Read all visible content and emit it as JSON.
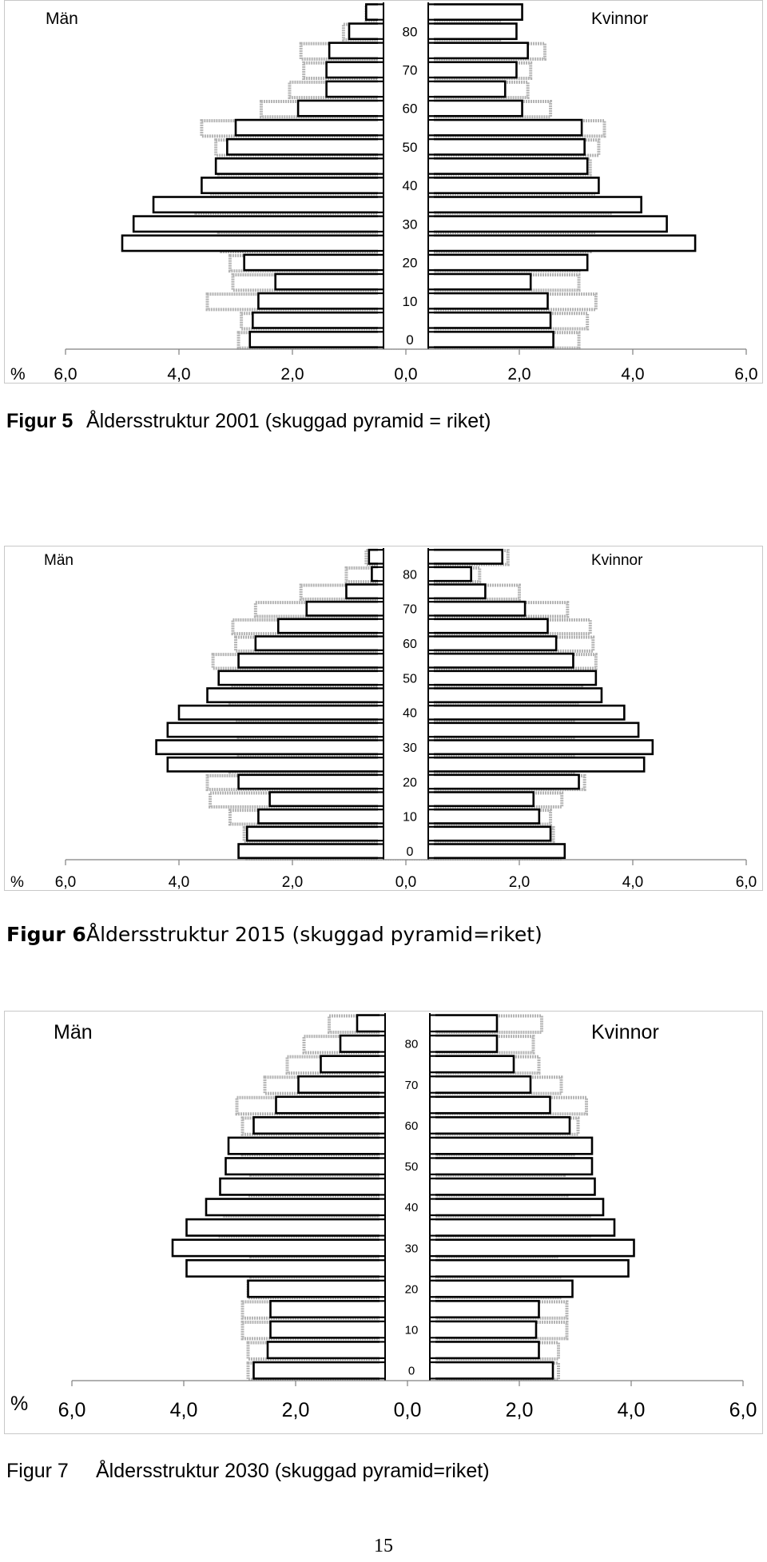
{
  "figures": [
    {
      "caption_num": "Figur 5",
      "caption_text": "Åldersstruktur 2001 (skuggad pyramid = riket)"
    },
    {
      "caption_num": "Figur 6",
      "caption_text": "Åldersstruktur 2015 (skuggad pyramid=riket)"
    },
    {
      "caption_num": "Figur 7",
      "caption_text": "Åldersstruktur 2030 (skuggad pyramid=riket)"
    }
  ],
  "page_number": "15",
  "chart_data": [
    {
      "type": "bar",
      "orientation": "horizontal-pyramid",
      "left_label": "Män",
      "right_label": "Kvinnor",
      "unit_label": "%",
      "x_ticks": [
        "6,0",
        "4,0",
        "2,0",
        "0,0",
        "2,0",
        "4,0",
        "6,0"
      ],
      "xlim": [
        -6,
        6
      ],
      "age_groups": [
        "0-4",
        "5-9",
        "10-14",
        "15-19",
        "20-24",
        "25-29",
        "30-34",
        "35-39",
        "40-44",
        "45-49",
        "50-54",
        "55-59",
        "60-64",
        "65-69",
        "70-74",
        "75-79",
        "80-84",
        "85+"
      ],
      "age_tick_labels": [
        "0",
        "10",
        "20",
        "30",
        "40",
        "50",
        "60",
        "70",
        "80"
      ],
      "series": [
        {
          "name": "Män",
          "values": [
            2.75,
            2.7,
            2.6,
            2.3,
            2.85,
            5.0,
            4.8,
            4.45,
            3.6,
            3.35,
            3.15,
            3.0,
            1.9,
            1.4,
            1.4,
            1.35,
            1.0,
            0.7
          ]
        },
        {
          "name": "Kvinnor",
          "values": [
            2.6,
            2.55,
            2.5,
            2.2,
            3.2,
            5.1,
            4.6,
            4.15,
            3.4,
            3.2,
            3.15,
            3.1,
            2.05,
            1.75,
            1.95,
            2.15,
            1.95,
            2.05
          ]
        },
        {
          "name": "riket män",
          "values": [
            2.95,
            2.9,
            3.5,
            3.05,
            3.1,
            3.25,
            3.3,
            3.7,
            3.45,
            3.3,
            3.35,
            3.6,
            2.55,
            2.05,
            1.8,
            1.85,
            1.1,
            0.7
          ]
        },
        {
          "name": "riket kvinnor",
          "values": [
            3.05,
            3.2,
            3.35,
            3.05,
            3.05,
            3.25,
            3.35,
            3.6,
            3.35,
            3.25,
            3.4,
            3.5,
            2.55,
            2.15,
            2.2,
            2.45,
            1.65,
            1.65
          ]
        }
      ]
    },
    {
      "type": "bar",
      "orientation": "horizontal-pyramid",
      "left_label": "Män",
      "right_label": "Kvinnor",
      "unit_label": "%",
      "x_ticks": [
        "6,0",
        "4,0",
        "2,0",
        "0,0",
        "2,0",
        "4,0",
        "6,0"
      ],
      "xlim": [
        -6,
        6
      ],
      "age_groups": [
        "0-4",
        "5-9",
        "10-14",
        "15-19",
        "20-24",
        "25-29",
        "30-34",
        "35-39",
        "40-44",
        "45-49",
        "50-54",
        "55-59",
        "60-64",
        "65-69",
        "70-74",
        "75-79",
        "80-84",
        "85+"
      ],
      "age_tick_labels": [
        "0",
        "10",
        "20",
        "30",
        "40",
        "50",
        "60",
        "70",
        "80"
      ],
      "series": [
        {
          "name": "Män",
          "values": [
            2.95,
            2.8,
            2.6,
            2.4,
            2.95,
            4.2,
            4.4,
            4.2,
            4.0,
            3.5,
            3.3,
            2.95,
            2.65,
            2.25,
            1.75,
            1.05,
            0.6,
            0.65
          ]
        },
        {
          "name": "Kvinnor",
          "values": [
            2.8,
            2.55,
            2.35,
            2.25,
            3.05,
            4.2,
            4.35,
            4.1,
            3.85,
            3.45,
            3.35,
            2.95,
            2.65,
            2.5,
            2.1,
            1.4,
            1.15,
            1.7
          ]
        },
        {
          "name": "riket män",
          "values": [
            2.8,
            2.85,
            3.1,
            3.45,
            3.5,
            3.1,
            2.95,
            2.95,
            3.0,
            3.1,
            3.05,
            3.4,
            3.0,
            3.05,
            2.65,
            1.85,
            1.05,
            0.7
          ]
        },
        {
          "name": "riket kvinnor",
          "values": [
            2.75,
            2.6,
            2.55,
            2.75,
            3.15,
            2.95,
            2.95,
            2.95,
            2.95,
            3.05,
            3.1,
            3.35,
            3.3,
            3.25,
            2.85,
            2.0,
            1.3,
            1.8
          ]
        }
      ]
    },
    {
      "type": "bar",
      "orientation": "horizontal-pyramid",
      "left_label": "Män",
      "right_label": "Kvinnor",
      "unit_label": "%",
      "x_ticks": [
        "6,0",
        "4,0",
        "2,0",
        "0,0",
        "2,0",
        "4,0",
        "6,0"
      ],
      "xlim": [
        -6,
        6
      ],
      "age_groups": [
        "0-4",
        "5-9",
        "10-14",
        "15-19",
        "20-24",
        "25-29",
        "30-34",
        "35-39",
        "40-44",
        "45-49",
        "50-54",
        "55-59",
        "60-64",
        "65-69",
        "70-74",
        "75-79",
        "80-84",
        "85+"
      ],
      "age_tick_labels": [
        "0",
        "10",
        "20",
        "30",
        "40",
        "50",
        "60",
        "70",
        "80"
      ],
      "series": [
        {
          "name": "Män",
          "values": [
            2.75,
            2.5,
            2.45,
            2.45,
            2.85,
            3.95,
            4.2,
            3.95,
            3.6,
            3.35,
            3.25,
            3.2,
            2.75,
            2.35,
            1.95,
            1.55,
            1.2,
            0.9
          ]
        },
        {
          "name": "Kvinnor",
          "values": [
            2.6,
            2.35,
            2.3,
            2.35,
            2.95,
            3.95,
            4.05,
            3.7,
            3.5,
            3.35,
            3.3,
            3.3,
            2.9,
            2.55,
            2.2,
            1.9,
            1.6,
            1.6
          ]
        },
        {
          "name": "riket män",
          "values": [
            2.85,
            2.85,
            2.95,
            2.95,
            2.85,
            2.8,
            2.8,
            3.35,
            3.3,
            2.85,
            2.8,
            2.95,
            2.95,
            3.05,
            2.55,
            2.15,
            1.85,
            1.4
          ]
        },
        {
          "name": "riket kvinnor",
          "values": [
            2.7,
            2.7,
            2.85,
            2.85,
            2.75,
            2.75,
            2.7,
            3.25,
            3.25,
            2.85,
            2.8,
            3.0,
            3.05,
            3.2,
            2.75,
            2.35,
            2.25,
            2.4
          ]
        }
      ]
    }
  ]
}
